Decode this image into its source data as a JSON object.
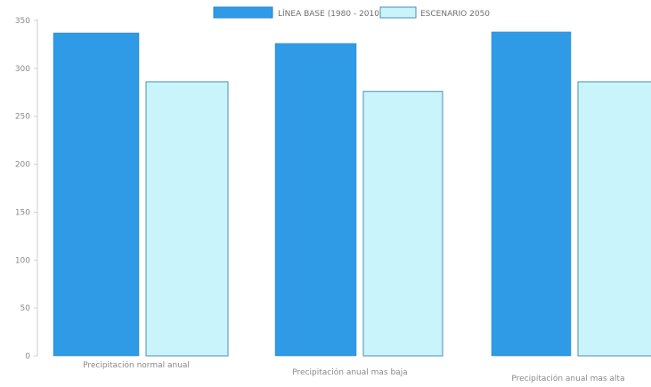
{
  "chart_data": {
    "type": "bar",
    "categories": [
      "Precipitación normal anual",
      "Precipitación anual mas baja",
      "Precipitación anual mas alta"
    ],
    "series": [
      {
        "name": "LÍNEA BASE (1980 - 2010)",
        "values": [
          337,
          326,
          338
        ],
        "color": "#2f9ae6"
      },
      {
        "name": "ESCENARIO 2050",
        "values": [
          286,
          276,
          286
        ],
        "color": "#c9f4fb"
      }
    ],
    "title": "",
    "xlabel": "",
    "ylabel": "",
    "ylim": [
      0,
      350
    ],
    "yticks": [
      0,
      50,
      100,
      150,
      200,
      250,
      300,
      350
    ],
    "grid": false,
    "legend": "top-center"
  }
}
